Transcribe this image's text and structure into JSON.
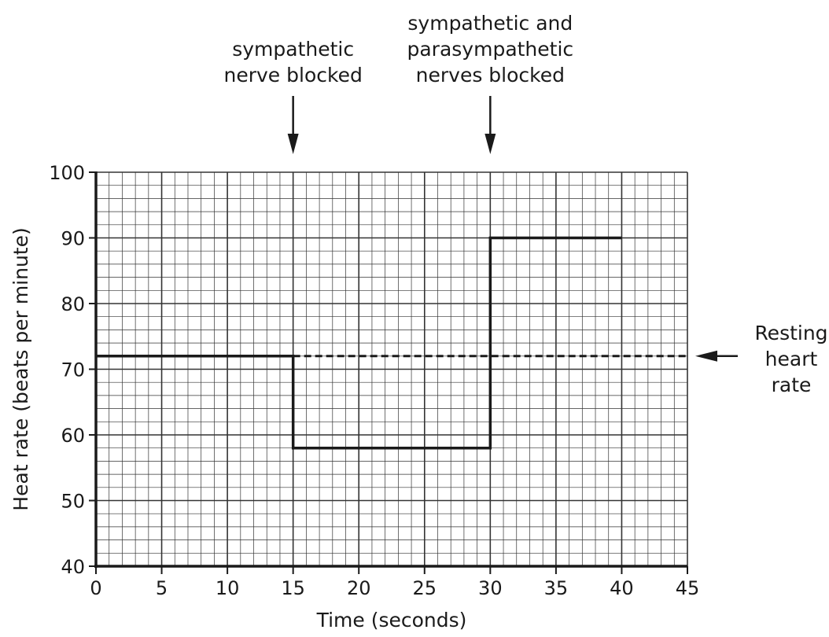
{
  "chart_data": {
    "type": "line",
    "xlabel": "Time (seconds)",
    "ylabel": "Heat rate (beats per minute)",
    "xlim": [
      0,
      45
    ],
    "ylim": [
      40,
      100
    ],
    "x_ticks": [
      0,
      5,
      10,
      15,
      20,
      25,
      30,
      35,
      40,
      45
    ],
    "y_ticks": [
      40,
      50,
      60,
      70,
      80,
      90,
      100
    ],
    "x_minor_step": 1,
    "y_minor_step": 2,
    "grid": true,
    "series": [
      {
        "style": "solid",
        "points": [
          [
            0,
            72
          ],
          [
            15,
            72
          ],
          [
            15,
            58
          ],
          [
            30,
            58
          ],
          [
            30,
            90
          ],
          [
            40,
            90
          ]
        ]
      },
      {
        "style": "dashed",
        "points": [
          [
            15,
            72
          ],
          [
            45,
            72
          ]
        ]
      }
    ],
    "annotations": [
      {
        "lines": [
          "sympathetic",
          "nerve blocked"
        ],
        "x": 15
      },
      {
        "lines": [
          "sympathetic and",
          "parasympathetic",
          "nerves blocked"
        ],
        "x": 30
      }
    ],
    "reference_label": {
      "lines": [
        "Resting",
        "heart",
        "rate"
      ],
      "y": 72
    },
    "colors": {
      "line": "#1a1a1a",
      "grid": "#333333"
    }
  }
}
